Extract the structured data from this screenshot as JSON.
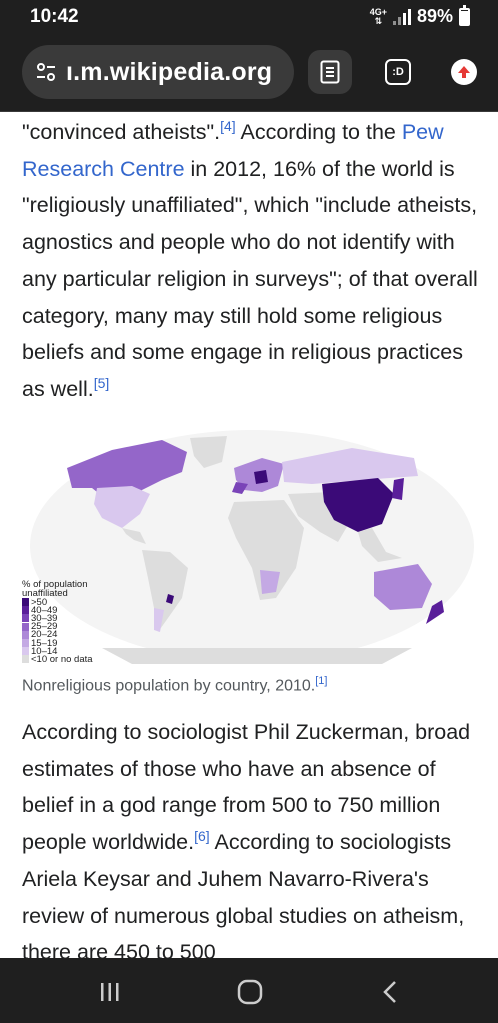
{
  "status": {
    "time": "10:42",
    "network": "4G+",
    "battery": "89%",
    "battery_level": 0.89
  },
  "browser": {
    "url": "ı.m.wikipedia.org",
    "tabs_label": ":D"
  },
  "article": {
    "p1_a": "\"convinced atheists\".",
    "ref4": "[4]",
    "p1_b": " According to the ",
    "link_pew": "Pew Research Centre",
    "p1_c": " in 2012, 16% of the world is \"religiously unaffiliated\", which \"include atheists, agnostics and people who do not identify with any particular religion in surveys\"; of that overall category, many may still hold some religious beliefs and some engage in religious practices as well.",
    "ref5": "[5]"
  },
  "figure": {
    "legend_title_1": "% of population",
    "legend_title_2": "unaffiliated",
    "legend": [
      {
        "label": ">50",
        "color": "#3b0a78"
      },
      {
        "label": "40–49",
        "color": "#5a1f9a"
      },
      {
        "label": "30–39",
        "color": "#7a44b8"
      },
      {
        "label": "25–29",
        "color": "#9466c9"
      },
      {
        "label": "20–24",
        "color": "#ad88d8"
      },
      {
        "label": "15–19",
        "color": "#c4a9e4"
      },
      {
        "label": "10–14",
        "color": "#d9c8ee"
      },
      {
        "label": "<10 or no data",
        "color": "#dddddd"
      }
    ],
    "caption": "Nonreligious population by country, 2010.",
    "caption_ref": "[1]"
  },
  "article2": {
    "p2_a": "According to sociologist Phil Zuckerman, broad estimates of those who have an absence of belief in a god range from 500 to 750 million people worldwide.",
    "ref6": "[6]",
    "p2_b": " According to sociologists Ariela Keysar and Juhem Navarro-Rivera's review of numerous global studies on atheism, there are 450 to 500"
  },
  "colors": {
    "chrome": "#1f1f1f",
    "link": "#3366cc",
    "upload_accent": "#e53935"
  }
}
